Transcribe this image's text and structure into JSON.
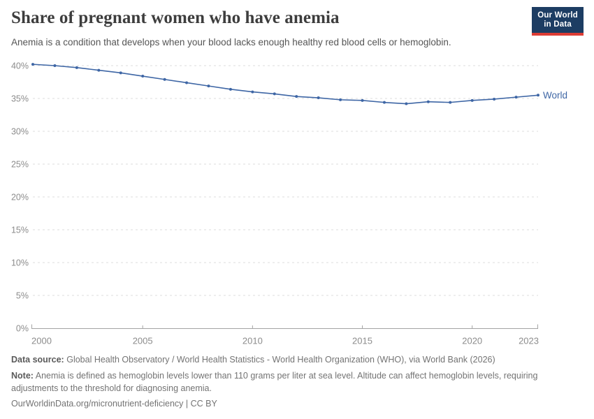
{
  "header": {
    "title": "Share of pregnant women who have anemia",
    "subtitle": "Anemia is a condition that develops when your blood lacks enough healthy red blood cells or hemoglobin.",
    "logo": {
      "line1": "Our World",
      "line2": "in Data"
    }
  },
  "chart_data": {
    "type": "line",
    "title": "Share of pregnant women who have anemia",
    "x": [
      2000,
      2001,
      2002,
      2003,
      2004,
      2005,
      2006,
      2007,
      2008,
      2009,
      2010,
      2011,
      2012,
      2013,
      2014,
      2015,
      2016,
      2017,
      2018,
      2019,
      2020,
      2021,
      2022,
      2023
    ],
    "series": [
      {
        "name": "World",
        "color": "#3e66a5",
        "values": [
          40.2,
          40.0,
          39.7,
          39.3,
          38.9,
          38.4,
          37.9,
          37.4,
          36.9,
          36.4,
          36.0,
          35.7,
          35.3,
          35.1,
          34.8,
          34.7,
          34.4,
          34.2,
          34.5,
          34.4,
          34.7,
          34.9,
          35.2,
          35.5
        ]
      }
    ],
    "ylim": [
      0,
      40
    ],
    "yticks": [
      0,
      5,
      10,
      15,
      20,
      25,
      30,
      35,
      40
    ],
    "ytick_suffix": "%",
    "xticks": [
      2000,
      2005,
      2010,
      2015,
      2020,
      2023
    ],
    "grid": "horizontal-dashed",
    "legend_position": "end-of-line"
  },
  "footer": {
    "source_label": "Data source:",
    "source_text": "Global Health Observatory / World Health Statistics - World Health Organization (WHO), via World Bank (2026)",
    "note_label": "Note:",
    "note_text": "Anemia is defined as hemoglobin levels lower than 110 grams per liter at sea level. Altitude can affect hemoglobin levels, requiring adjustments to the threshold for diagnosing anemia.",
    "license_line": "OurWorldinData.org/micronutrient-deficiency | CC BY"
  },
  "colors": {
    "line": "#3e66a5",
    "grid": "#dddddd",
    "axis": "#a3a3a3",
    "text_muted": "#8c8c8c",
    "logo_bg": "#1d3d63",
    "logo_stripe": "#dd3c34"
  }
}
